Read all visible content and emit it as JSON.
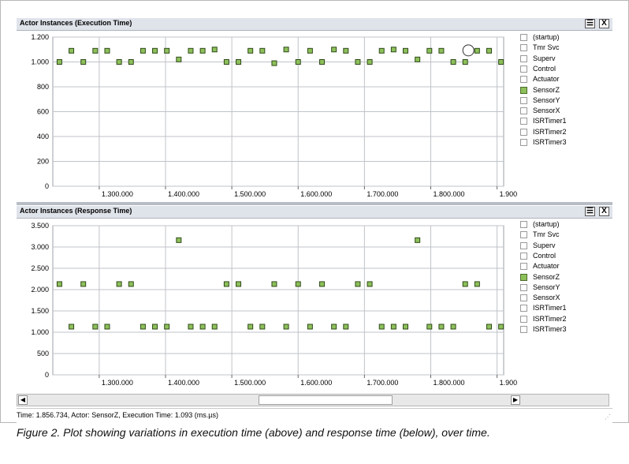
{
  "window": {
    "list_icon": "list-icon",
    "close_icon": "close-icon",
    "close_glyph": "X"
  },
  "legend": {
    "items": [
      "(startup)",
      "Tmr Svc",
      "Superv",
      "Control",
      "Actuator",
      "SensorZ",
      "SensorY",
      "SensorX",
      "ISRTimer1",
      "ISRTimer2",
      "ISRTimer3"
    ],
    "checked": "SensorZ"
  },
  "chart_data": [
    {
      "type": "scatter",
      "title": "Actor Instances (Execution Time)",
      "xlim": [
        1230000,
        1910000
      ],
      "ylim": [
        0,
        1200
      ],
      "x_ticks": [
        1300000,
        1400000,
        1500000,
        1600000,
        1700000,
        1800000,
        1900000
      ],
      "x_tick_labels": [
        "1.300.000",
        "1.400.000",
        "1.500.000",
        "1.600.000",
        "1.700.000",
        "1.800.000",
        "1.900.000"
      ],
      "y_ticks": [
        0,
        200,
        400,
        600,
        800,
        1000,
        1200
      ],
      "y_tick_labels": [
        "0",
        "200",
        "400",
        "600",
        "800",
        "1.000",
        "1.200"
      ],
      "grid": true,
      "legend_position": "right",
      "series": [
        {
          "name": "SensorZ",
          "color": "#8dc05a",
          "x": [
            1240000,
            1258000,
            1276000,
            1294000,
            1312000,
            1330000,
            1348000,
            1366000,
            1384000,
            1402000,
            1420000,
            1438000,
            1456000,
            1474000,
            1492000,
            1510000,
            1528000,
            1546000,
            1564000,
            1582000,
            1600000,
            1618000,
            1636000,
            1654000,
            1672000,
            1690000,
            1708000,
            1726000,
            1744000,
            1762000,
            1780000,
            1798000,
            1816000,
            1834000,
            1852000,
            1870000,
            1888000,
            1906000
          ],
          "y": [
            1000,
            1090,
            1000,
            1090,
            1090,
            1000,
            1000,
            1090,
            1090,
            1090,
            1020,
            1090,
            1090,
            1100,
            1000,
            1000,
            1090,
            1090,
            990,
            1100,
            1000,
            1090,
            1000,
            1100,
            1090,
            1000,
            1000,
            1090,
            1100,
            1090,
            1020,
            1090,
            1090,
            1000,
            1000,
            1090,
            1090,
            1000
          ]
        }
      ],
      "annotation": {
        "label": "selected",
        "x": 1856734,
        "y": 1093
      }
    },
    {
      "type": "scatter",
      "title": "Actor Instances (Response Time)",
      "xlim": [
        1230000,
        1910000
      ],
      "ylim": [
        0,
        3500
      ],
      "x_ticks": [
        1300000,
        1400000,
        1500000,
        1600000,
        1700000,
        1800000,
        1900000
      ],
      "x_tick_labels": [
        "1.300.000",
        "1.400.000",
        "1.500.000",
        "1.600.000",
        "1.700.000",
        "1.800.000",
        "1.900.000"
      ],
      "y_ticks": [
        0,
        500,
        1000,
        1500,
        2000,
        2500,
        3000,
        3500
      ],
      "y_tick_labels": [
        "0",
        "500",
        "1.000",
        "1.500",
        "2.000",
        "2.500",
        "3.000",
        "3.500"
      ],
      "grid": true,
      "legend_position": "right",
      "series": [
        {
          "name": "SensorZ",
          "color": "#8dc05a",
          "x": [
            1240000,
            1258000,
            1276000,
            1294000,
            1312000,
            1330000,
            1348000,
            1366000,
            1384000,
            1402000,
            1420000,
            1438000,
            1456000,
            1474000,
            1492000,
            1510000,
            1528000,
            1546000,
            1564000,
            1582000,
            1600000,
            1618000,
            1636000,
            1654000,
            1672000,
            1690000,
            1708000,
            1726000,
            1744000,
            1762000,
            1780000,
            1798000,
            1816000,
            1834000,
            1852000,
            1870000,
            1888000,
            1906000
          ],
          "y": [
            2130,
            1130,
            2130,
            1130,
            1130,
            2130,
            2130,
            1130,
            1130,
            1130,
            3160,
            1130,
            1130,
            1130,
            2130,
            2130,
            1130,
            1130,
            2130,
            1130,
            2130,
            1130,
            2130,
            1130,
            1130,
            2130,
            2130,
            1130,
            1130,
            1130,
            3160,
            1130,
            1130,
            1130,
            2130,
            2130,
            1130,
            1130
          ]
        }
      ]
    }
  ],
  "status": {
    "text": "Time: 1.856.734, Actor: SensorZ, Execution Time: 1.093 (ms.µs)"
  },
  "caption": "Figure 2. Plot showing variations in execution time (above) and response time (below), over time."
}
